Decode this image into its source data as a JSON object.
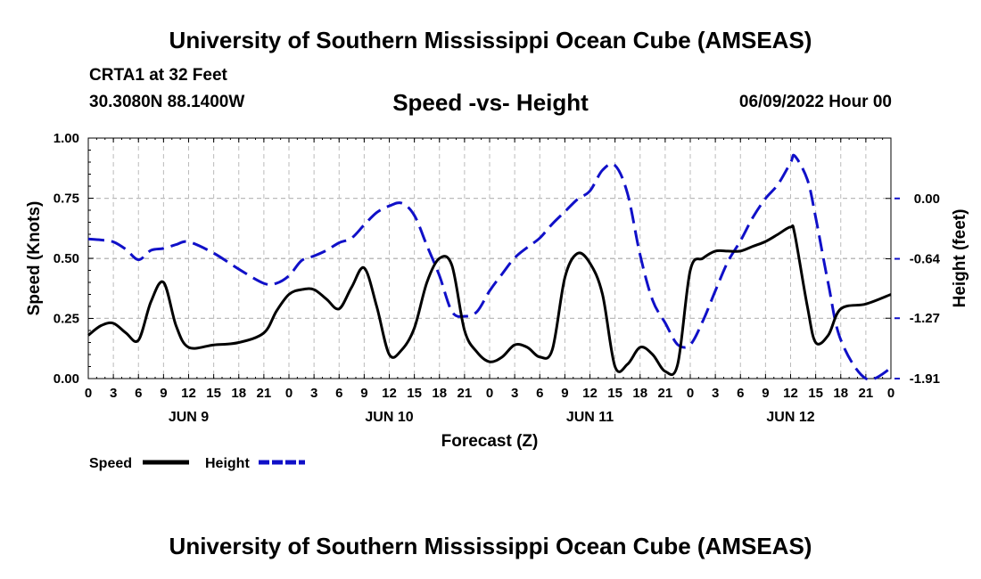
{
  "header": {
    "title": "University of Southern Mississippi Ocean Cube (AMSEAS)",
    "station": "CRTA1 at 32 Feet",
    "coords": "30.3080N  88.1400W",
    "subtitle": "Speed -vs- Height",
    "datetime": "06/09/2022 Hour 00"
  },
  "footer": {
    "title": "University of Southern Mississippi Ocean Cube (AMSEAS)"
  },
  "chart_data": {
    "type": "line",
    "title": "Speed -vs- Height",
    "xlabel": "Forecast (Z)",
    "ylabel_left": "Speed (Knots)",
    "ylabel_right": "Height (feet)",
    "x_hours_range": [
      0,
      96
    ],
    "x_tick_labels": [
      "0",
      "3",
      "6",
      "9",
      "12",
      "15",
      "18",
      "21",
      "0",
      "3",
      "6",
      "9",
      "12",
      "15",
      "18",
      "21",
      "0",
      "3",
      "6",
      "9",
      "12",
      "15",
      "18",
      "21",
      "0",
      "3",
      "6",
      "9",
      "12",
      "15",
      "18",
      "21",
      "0"
    ],
    "day_labels": [
      {
        "label": "JUN 9",
        "hour": 12
      },
      {
        "label": "JUN 10",
        "hour": 36
      },
      {
        "label": "JUN 11",
        "hour": 60
      },
      {
        "label": "JUN 12",
        "hour": 84
      }
    ],
    "y_left": {
      "range": [
        0,
        1
      ],
      "ticks": [
        0,
        0.25,
        0.5,
        0.75,
        1
      ],
      "tick_labels": [
        "0.00",
        "0.25",
        "0.50",
        "0.75",
        "1.00"
      ]
    },
    "y_right": {
      "range": [
        -1.91,
        0.64
      ],
      "ticks": [
        -1.91,
        -1.27,
        -0.64,
        0.0
      ],
      "tick_labels": [
        "-1.91",
        "-1.27",
        "-0.64",
        "0.00"
      ]
    },
    "grid": true,
    "legend": [
      {
        "label": "Speed",
        "color": "#000000",
        "dash": "solid"
      },
      {
        "label": "Height",
        "color": "#1010c8",
        "dash": "dashed"
      }
    ],
    "series": [
      {
        "name": "Speed",
        "axis": "left",
        "color": "#000000",
        "hours": [
          0,
          1.5,
          3,
          4.5,
          6,
          7.5,
          9,
          10.5,
          12,
          15,
          18,
          21,
          22.5,
          24,
          25.5,
          27,
          28.5,
          30,
          31.5,
          33,
          34.5,
          36,
          37.5,
          39,
          40.5,
          42,
          43.5,
          45,
          46.5,
          48,
          49.5,
          51,
          52.5,
          54,
          55.5,
          57,
          58.5,
          60,
          61.5,
          63,
          64.5,
          66,
          67.5,
          69,
          70.5,
          72,
          73.5,
          75,
          76.5,
          78,
          79.5,
          81,
          82.5,
          84,
          84.5,
          86,
          87,
          88.5,
          90,
          93,
          96
        ],
        "values": [
          0.18,
          0.22,
          0.23,
          0.19,
          0.16,
          0.32,
          0.4,
          0.22,
          0.13,
          0.14,
          0.15,
          0.19,
          0.28,
          0.35,
          0.37,
          0.37,
          0.33,
          0.29,
          0.38,
          0.46,
          0.3,
          0.1,
          0.12,
          0.21,
          0.4,
          0.5,
          0.47,
          0.2,
          0.11,
          0.07,
          0.09,
          0.14,
          0.13,
          0.09,
          0.12,
          0.42,
          0.52,
          0.48,
          0.35,
          0.05,
          0.06,
          0.13,
          0.1,
          0.03,
          0.06,
          0.45,
          0.5,
          0.53,
          0.53,
          0.53,
          0.55,
          0.57,
          0.6,
          0.63,
          0.6,
          0.3,
          0.15,
          0.18,
          0.29,
          0.31,
          0.35
        ]
      },
      {
        "name": "Height",
        "axis": "right",
        "color": "#1010c8",
        "hours": [
          0,
          1.5,
          3,
          4.5,
          6,
          7.5,
          9,
          10.5,
          12,
          15,
          18,
          21,
          22.5,
          24,
          25.5,
          27,
          28.5,
          30,
          31.5,
          33,
          34.5,
          36,
          37.5,
          39,
          40.5,
          42,
          43.5,
          45,
          46.5,
          48,
          49.5,
          51,
          52.5,
          54,
          55.5,
          57,
          58.5,
          60,
          61.5,
          63,
          64.5,
          66,
          67.5,
          69,
          70.5,
          72,
          73.5,
          75,
          76.5,
          78,
          79.5,
          81,
          82.5,
          84,
          84.5,
          86,
          87,
          88.5,
          90,
          93,
          96
        ],
        "values": [
          -0.43,
          -0.44,
          -0.46,
          -0.54,
          -0.65,
          -0.55,
          -0.53,
          -0.49,
          -0.46,
          -0.58,
          -0.75,
          -0.9,
          -0.9,
          -0.82,
          -0.66,
          -0.61,
          -0.55,
          -0.47,
          -0.42,
          -0.28,
          -0.15,
          -0.08,
          -0.05,
          -0.18,
          -0.5,
          -0.82,
          -1.2,
          -1.25,
          -1.2,
          -0.98,
          -0.8,
          -0.63,
          -0.52,
          -0.42,
          -0.27,
          -0.14,
          -0.01,
          0.08,
          0.3,
          0.35,
          0.05,
          -0.6,
          -1.08,
          -1.32,
          -1.55,
          -1.55,
          -1.3,
          -0.98,
          -0.67,
          -0.45,
          -0.2,
          0.0,
          0.15,
          0.38,
          0.45,
          0.2,
          -0.2,
          -0.9,
          -1.5,
          -1.91,
          -1.8
        ]
      }
    ]
  }
}
